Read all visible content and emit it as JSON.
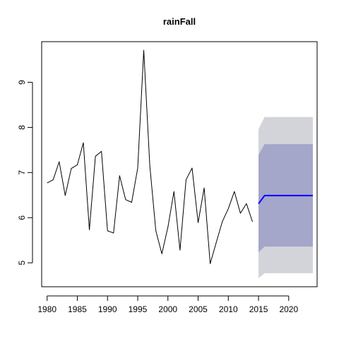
{
  "chart_data": {
    "type": "line",
    "title": "rainFall",
    "xlabel": "",
    "ylabel": "",
    "xlim": [
      1979.1,
      2024.7
    ],
    "ylim": [
      4.47,
      9.9
    ],
    "x_ticks": [
      1980,
      1985,
      1990,
      1995,
      2000,
      2005,
      2010,
      2015,
      2020
    ],
    "y_ticks": [
      5,
      6,
      7,
      8,
      9
    ],
    "grid": false,
    "series": [
      {
        "role": "observed",
        "color": "#000000",
        "x": [
          1980,
          1981,
          1982,
          1983,
          1984,
          1985,
          1986,
          1987,
          1988,
          1989,
          1990,
          1991,
          1992,
          1993,
          1994,
          1995,
          1996,
          1997,
          1998,
          1999,
          2000,
          2001,
          2002,
          2003,
          2004,
          2005,
          2006,
          2007,
          2008,
          2009,
          2010,
          2011,
          2012,
          2013,
          2014
        ],
        "values": [
          6.77,
          6.84,
          7.24,
          6.49,
          7.09,
          7.17,
          7.66,
          5.73,
          7.36,
          7.47,
          5.71,
          5.66,
          6.93,
          6.4,
          6.34,
          7.1,
          9.71,
          7.16,
          5.71,
          5.2,
          5.79,
          6.58,
          5.28,
          6.84,
          7.1,
          5.89,
          6.66,
          4.98,
          5.45,
          5.91,
          6.2,
          6.58,
          6.1,
          6.31,
          5.91
        ]
      },
      {
        "role": "forecast-mean",
        "color": "#0000ff",
        "x": [
          2015,
          2016,
          2017,
          2018,
          2019,
          2020,
          2021,
          2022,
          2023,
          2024
        ],
        "values": [
          6.31,
          6.49,
          6.49,
          6.49,
          6.49,
          6.49,
          6.49,
          6.49,
          6.49,
          6.49
        ]
      }
    ],
    "intervals": [
      {
        "role": "outer-band",
        "color": "#d3d3da",
        "x": [
          2015,
          2016,
          2017,
          2018,
          2019,
          2020,
          2021,
          2022,
          2023,
          2024
        ],
        "lower": [
          4.66,
          4.77,
          4.77,
          4.77,
          4.77,
          4.77,
          4.77,
          4.77,
          4.77,
          4.77
        ],
        "upper": [
          7.96,
          8.23,
          8.23,
          8.23,
          8.23,
          8.23,
          8.23,
          8.23,
          8.23,
          8.23
        ]
      },
      {
        "role": "inner-band",
        "color": "#a4a6ca",
        "x": [
          2015,
          2016,
          2017,
          2018,
          2019,
          2020,
          2021,
          2022,
          2023,
          2024
        ],
        "lower": [
          5.23,
          5.36,
          5.36,
          5.36,
          5.36,
          5.36,
          5.36,
          5.36,
          5.36,
          5.36
        ],
        "upper": [
          7.39,
          7.63,
          7.63,
          7.63,
          7.63,
          7.63,
          7.63,
          7.63,
          7.63,
          7.63
        ]
      }
    ]
  }
}
